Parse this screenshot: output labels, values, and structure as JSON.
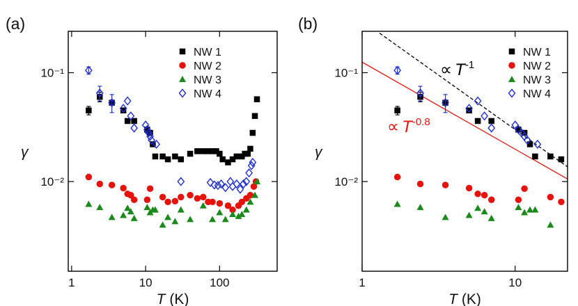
{
  "chart_data": [
    {
      "type": "scatter",
      "panel_label": "(a)",
      "xlog": true,
      "ylog": true,
      "xlabel": {
        "symbol": "T",
        "unit": "(K)"
      },
      "ylabel": "γ",
      "xlim": [
        0.9,
        600
      ],
      "ylim": [
        0.0015,
        0.24
      ],
      "xticks": [
        1,
        10,
        100
      ],
      "yticks": [
        {
          "value": 0.1,
          "label": "10⁻¹"
        },
        {
          "value": 0.01,
          "label": "10⁻²"
        }
      ],
      "series": [
        {
          "name": "NW 1",
          "color": "#000000",
          "marker": "square",
          "x": [
            1.7,
            2.4,
            3.5,
            5,
            5.7,
            7,
            10.5,
            11.5,
            12.5,
            13.5,
            17,
            20,
            25,
            30,
            40,
            50,
            60,
            70,
            80,
            90,
            100,
            110,
            130,
            150,
            170,
            200,
            220,
            240,
            260,
            280,
            300,
            320
          ],
          "values": [
            0.045,
            0.06,
            0.053,
            0.045,
            0.036,
            0.036,
            0.03,
            0.028,
            0.022,
            0.017,
            0.017,
            0.016,
            0.017,
            0.016,
            0.018,
            0.019,
            0.019,
            0.019,
            0.019,
            0.019,
            0.018,
            0.016,
            0.015,
            0.016,
            0.017,
            0.017,
            0.018,
            0.018,
            0.02,
            0.028,
            0.04,
            0.057
          ],
          "errors": [
            0.004,
            0.006,
            null,
            null,
            null,
            null,
            null,
            null,
            null,
            null,
            null,
            null,
            null,
            null,
            null,
            null,
            null,
            null,
            null,
            null,
            null,
            null,
            null,
            null,
            null,
            null,
            null,
            null,
            null,
            null,
            null,
            null
          ]
        },
        {
          "name": "NW 2",
          "color": "#e8120c",
          "marker": "circle",
          "x": [
            1.7,
            2.4,
            3.5,
            5,
            5.7,
            6.3,
            7,
            10.5,
            11.5,
            17,
            20,
            25,
            30,
            40,
            50,
            60,
            70,
            80,
            100,
            130,
            150,
            180,
            200,
            230,
            260,
            290,
            310
          ],
          "values": [
            0.011,
            0.0095,
            0.0093,
            0.0087,
            0.0077,
            0.0075,
            0.0068,
            0.0068,
            0.0086,
            0.0072,
            0.0065,
            0.0066,
            0.0072,
            0.0075,
            0.007,
            0.0072,
            0.0065,
            0.0065,
            0.0063,
            0.006,
            0.0055,
            0.006,
            0.0065,
            0.007,
            0.0075,
            0.009,
            0.01
          ]
        },
        {
          "name": "NW 3",
          "color": "#1a8a1a",
          "marker": "triangle",
          "x": [
            1.7,
            2.4,
            3.5,
            5,
            5.7,
            6.3,
            7,
            10.5,
            11.5,
            12.5,
            13.5,
            17,
            20,
            25,
            30,
            40,
            60,
            80,
            100,
            120,
            150,
            180,
            200,
            230,
            260,
            300,
            320
          ],
          "values": [
            0.0062,
            0.0058,
            0.0047,
            0.0049,
            0.0057,
            0.0053,
            0.0046,
            0.0058,
            0.0052,
            0.0055,
            0.0055,
            0.004,
            0.0047,
            0.0043,
            0.0055,
            0.0045,
            0.006,
            0.0045,
            0.0052,
            0.0045,
            0.005,
            0.0048,
            0.005,
            0.0055,
            0.0065,
            0.0075,
            0.01
          ]
        },
        {
          "name": "NW 4",
          "color": "#1f2fd6",
          "marker": "diamond-open",
          "x": [
            1.7,
            2.4,
            3.5,
            5,
            5.7,
            6.3,
            7,
            10,
            10.5,
            11,
            11.5,
            12,
            14,
            30,
            75,
            85,
            95,
            105,
            120,
            140,
            150,
            170,
            190,
            210,
            230,
            250,
            270,
            280
          ],
          "values": [
            0.105,
            0.065,
            0.053,
            0.047,
            0.055,
            0.04,
            0.031,
            0.033,
            0.03,
            0.028,
            0.026,
            0.024,
            0.022,
            0.01,
            0.0098,
            0.0093,
            0.0092,
            0.0095,
            0.0088,
            0.01,
            0.009,
            0.0095,
            0.0085,
            0.0095,
            0.01,
            0.012,
            0.014,
            0.015
          ],
          "errors": [
            0.008,
            0.01,
            0.01,
            null,
            null,
            null,
            null,
            null,
            null,
            null,
            null,
            null,
            null,
            null,
            null,
            null,
            null,
            null,
            null,
            null,
            null,
            null,
            null,
            null,
            null,
            null,
            null,
            null
          ]
        }
      ]
    },
    {
      "type": "scatter",
      "panel_label": "(b)",
      "xlog": true,
      "ylog": true,
      "xlabel": {
        "symbol": "T",
        "unit": "(K)"
      },
      "ylabel": "γ",
      "xlim": [
        1,
        22
      ],
      "ylim": [
        0.0015,
        0.24
      ],
      "xticks": [
        1,
        10
      ],
      "yticks": [
        {
          "value": 0.1,
          "label": "10⁻¹"
        },
        {
          "value": 0.01,
          "label": "10⁻²"
        }
      ],
      "series": [
        {
          "name": "NW 1",
          "color": "#000000",
          "marker": "square",
          "x": [
            1.7,
            2.4,
            3.5,
            5,
            5.7,
            7,
            10.5,
            11.5,
            12.5,
            13.5,
            17,
            20
          ],
          "values": [
            0.045,
            0.06,
            0.053,
            0.045,
            0.036,
            0.036,
            0.03,
            0.028,
            0.022,
            0.017,
            0.017,
            0.016
          ],
          "errors": [
            0.004,
            0.006,
            null,
            null,
            null,
            null,
            null,
            null,
            null,
            null,
            null,
            null
          ]
        },
        {
          "name": "NW 2",
          "color": "#e8120c",
          "marker": "circle",
          "x": [
            1.7,
            2.4,
            3.5,
            5,
            5.7,
            6.3,
            7,
            10.5,
            11.5,
            17,
            20
          ],
          "values": [
            0.011,
            0.0095,
            0.0093,
            0.0087,
            0.0077,
            0.0075,
            0.0068,
            0.0068,
            0.0086,
            0.0072,
            0.0065
          ]
        },
        {
          "name": "NW 3",
          "color": "#1a8a1a",
          "marker": "triangle",
          "x": [
            1.7,
            2.4,
            3.5,
            5,
            5.7,
            6.3,
            7,
            10.5,
            11.5,
            12.5,
            13.5,
            17
          ],
          "values": [
            0.0062,
            0.0058,
            0.0047,
            0.0049,
            0.0057,
            0.0053,
            0.0046,
            0.0058,
            0.0052,
            0.0055,
            0.0055,
            0.004
          ]
        },
        {
          "name": "NW 4",
          "color": "#1f2fd6",
          "marker": "diamond-open",
          "x": [
            1.7,
            2.4,
            3.5,
            5,
            5.7,
            6.3,
            7,
            10,
            10.5,
            11,
            11.5,
            12,
            14
          ],
          "values": [
            0.105,
            0.065,
            0.053,
            0.047,
            0.055,
            0.04,
            0.031,
            0.033,
            0.03,
            0.028,
            0.026,
            0.024,
            0.022
          ],
          "errors": [
            0.008,
            0.01,
            0.01,
            null,
            null,
            null,
            null,
            null,
            null,
            null,
            null,
            null,
            null
          ]
        }
      ],
      "fits": [
        {
          "prefix": "∝",
          "symbol": "T",
          "exponent": -1,
          "prefactor": 0.3,
          "xlim": [
            1.3,
            22
          ],
          "color": "#000000",
          "dashed": true
        },
        {
          "prefix": "∝",
          "symbol": "T",
          "exponent": -0.8,
          "prefactor": 0.125,
          "xlim": [
            1,
            22
          ],
          "color": "#e8120c",
          "dashed": false
        }
      ]
    }
  ]
}
